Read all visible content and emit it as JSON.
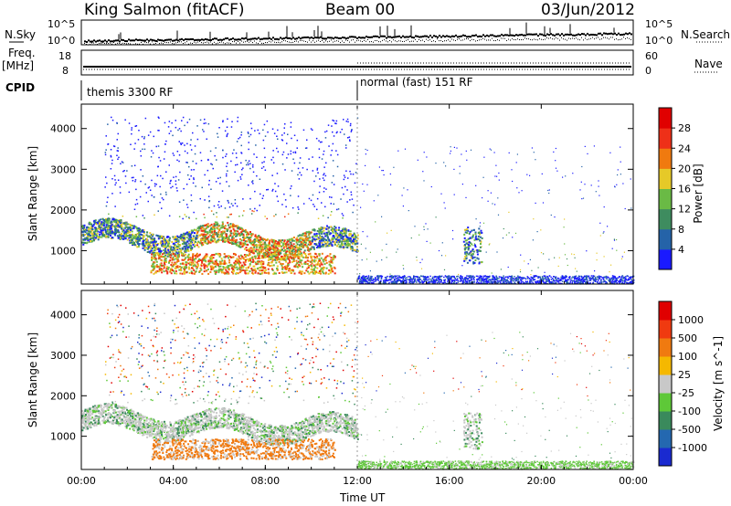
{
  "header": {
    "station": "King Salmon (fitACF)",
    "beam": "Beam 00",
    "date": "03/Jun/2012"
  },
  "strip_labels": {
    "nsky": "N.Sky",
    "nsearch": "N.Search",
    "freq": "Freq.",
    "freq_unit": "[MHz]",
    "nave": "Nave",
    "cpid": "CPID",
    "noise_top": "10^5",
    "noise_bottom": "10^0",
    "freq_top": "18",
    "freq_bottom": "8",
    "nave_top": "60",
    "nave_bottom": "0"
  },
  "cpid_segments": [
    {
      "label": "themis 3300 RF",
      "start_hour": 0
    },
    {
      "label": "normal (fast) 151 RF",
      "start_hour": 12
    }
  ],
  "x_axis": {
    "label": "Time UT",
    "ticks": [
      "00:00",
      "04:00",
      "08:00",
      "12:00",
      "16:00",
      "20:00",
      "00:00"
    ]
  },
  "chart_data": [
    {
      "type": "heatmap",
      "name": "power",
      "ylabel": "Slant Range [km]",
      "xlim_hours": [
        0,
        24
      ],
      "ylim": [
        180,
        4600
      ],
      "yticks": [
        "1000",
        "2000",
        "3000",
        "4000"
      ],
      "colorbar_label": "Power [dB]",
      "colorbar_ticks": [
        "4",
        "8",
        "12",
        "16",
        "20",
        "24",
        "28"
      ],
      "colors": [
        "#1a1aff",
        "#2563a8",
        "#3e8c5f",
        "#6aba45",
        "#e6c928",
        "#f07a0f",
        "#ee3018",
        "#e00000"
      ]
    },
    {
      "type": "heatmap",
      "name": "velocity",
      "ylabel": "Slant Range [km]",
      "xlim_hours": [
        0,
        24
      ],
      "ylim": [
        180,
        4600
      ],
      "yticks": [
        "1000",
        "2000",
        "3000",
        "4000"
      ],
      "colorbar_label": "Velocity [m s^-1]",
      "colorbar_ticks": [
        "1000",
        "500",
        "100",
        "25",
        "-25",
        "-100",
        "-500",
        "-1000"
      ],
      "colors": [
        "#1a2ad0",
        "#2468b0",
        "#3a8a5c",
        "#5ec838",
        "#c8c8c8",
        "#f5b800",
        "#f07a10",
        "#f03a10",
        "#e00000"
      ]
    }
  ]
}
